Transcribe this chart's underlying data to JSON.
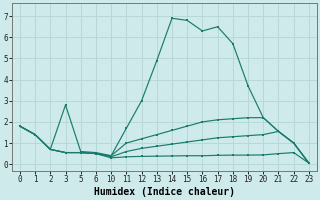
{
  "xlabel": "Humidex (Indice chaleur)",
  "bg_color": "#ceeaea",
  "line_color": "#1a7a6e",
  "grid_color": "#b8d8d8",
  "x_labels": [
    "0",
    "1",
    "2",
    "3",
    "5",
    "6",
    "10",
    "11",
    "12",
    "13",
    "14",
    "15",
    "16",
    "17",
    "18",
    "19",
    "20",
    "21",
    "22",
    "23"
  ],
  "ylim": [
    -0.3,
    7.6
  ],
  "series": [
    {
      "pos": [
        0,
        1,
        2,
        3,
        4,
        5,
        6,
        7,
        8,
        9,
        10,
        11,
        12,
        13,
        14,
        15,
        16,
        17,
        18,
        19
      ],
      "y": [
        1.8,
        1.4,
        0.7,
        2.8,
        0.6,
        0.55,
        0.4,
        1.7,
        3.0,
        4.9,
        6.9,
        6.8,
        6.3,
        6.5,
        5.7,
        3.7,
        2.2,
        1.55,
        1.0,
        0.05
      ]
    },
    {
      "pos": [
        0,
        1,
        2,
        3,
        4,
        5,
        6,
        7,
        8,
        9,
        10,
        11,
        12,
        13,
        14,
        15,
        16,
        17,
        18,
        19
      ],
      "y": [
        1.8,
        1.4,
        0.7,
        0.55,
        0.55,
        0.5,
        0.4,
        1.0,
        1.2,
        1.4,
        1.6,
        1.8,
        2.0,
        2.1,
        2.15,
        2.2,
        2.2,
        1.55,
        1.0,
        0.05
      ]
    },
    {
      "pos": [
        0,
        1,
        2,
        3,
        4,
        5,
        6,
        7,
        8,
        9,
        10,
        11,
        12,
        13,
        14,
        15,
        16,
        17,
        18,
        19
      ],
      "y": [
        1.8,
        1.4,
        0.7,
        0.55,
        0.55,
        0.5,
        0.35,
        0.6,
        0.75,
        0.85,
        0.95,
        1.05,
        1.15,
        1.25,
        1.3,
        1.35,
        1.4,
        1.55,
        1.0,
        0.05
      ]
    },
    {
      "pos": [
        0,
        1,
        2,
        3,
        4,
        5,
        6,
        7,
        8,
        9,
        10,
        11,
        12,
        13,
        14,
        15,
        16,
        17,
        18,
        19
      ],
      "y": [
        1.8,
        1.4,
        0.7,
        0.55,
        0.55,
        0.5,
        0.3,
        0.35,
        0.37,
        0.38,
        0.39,
        0.4,
        0.4,
        0.42,
        0.43,
        0.43,
        0.44,
        0.5,
        0.55,
        0.05
      ]
    }
  ],
  "tick_fontsize": 5.5,
  "label_fontsize": 7.0
}
